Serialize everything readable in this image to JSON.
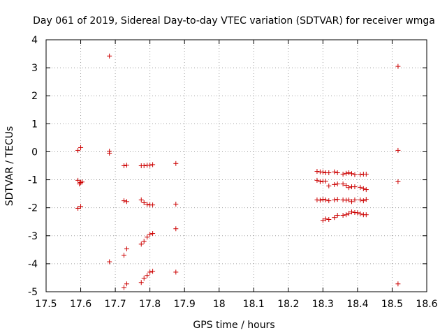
{
  "chart_data": {
    "type": "scatter",
    "title": "Day 061 of 2019, Sidereal Day-to-day VTEC variation (SDTVAR) for receiver wmga",
    "xlabel": "GPS time / hours",
    "ylabel": "SDTVAR / TECUs",
    "xlim": [
      17.5,
      18.6
    ],
    "ylim": [
      -5,
      4
    ],
    "xticks": [
      17.5,
      17.6,
      17.7,
      17.8,
      17.9,
      18.0,
      18.1,
      18.2,
      18.3,
      18.4,
      18.5,
      18.6
    ],
    "xtick_labels": [
      "17.5",
      "17.6",
      "17.7",
      "17.8",
      "17.9",
      "18",
      "18.1",
      "18.2",
      "18.3",
      "18.4",
      "18.5",
      "18.6"
    ],
    "yticks": [
      -5,
      -4,
      -3,
      -2,
      -1,
      0,
      1,
      2,
      3,
      4
    ],
    "ytick_labels": [
      "-5",
      "-4",
      "-3",
      "-2",
      "-1",
      "0",
      "1",
      "2",
      "3",
      "4"
    ],
    "grid": true,
    "marker": "+",
    "color": "#cc0000",
    "series": [
      {
        "name": "SDTVAR",
        "points": [
          [
            17.592,
            0.05
          ],
          [
            17.6,
            0.15
          ],
          [
            17.592,
            -1.02
          ],
          [
            17.596,
            -1.15
          ],
          [
            17.6,
            -1.1
          ],
          [
            17.604,
            -1.08
          ],
          [
            17.592,
            -2.02
          ],
          [
            17.6,
            -1.95
          ],
          [
            17.683,
            3.42
          ],
          [
            17.683,
            0.02
          ],
          [
            17.683,
            -0.05
          ],
          [
            17.683,
            -3.93
          ],
          [
            17.725,
            -0.5
          ],
          [
            17.733,
            -0.48
          ],
          [
            17.725,
            -1.75
          ],
          [
            17.733,
            -1.78
          ],
          [
            17.725,
            -3.7
          ],
          [
            17.733,
            -3.47
          ],
          [
            17.725,
            -4.85
          ],
          [
            17.733,
            -4.72
          ],
          [
            17.775,
            -0.5
          ],
          [
            17.783,
            -0.5
          ],
          [
            17.792,
            -0.48
          ],
          [
            17.8,
            -0.48
          ],
          [
            17.808,
            -0.46
          ],
          [
            17.775,
            -1.72
          ],
          [
            17.783,
            -1.82
          ],
          [
            17.792,
            -1.88
          ],
          [
            17.8,
            -1.9
          ],
          [
            17.808,
            -1.9
          ],
          [
            17.775,
            -3.3
          ],
          [
            17.783,
            -3.2
          ],
          [
            17.792,
            -3.05
          ],
          [
            17.8,
            -2.95
          ],
          [
            17.808,
            -2.92
          ],
          [
            17.775,
            -4.67
          ],
          [
            17.783,
            -4.52
          ],
          [
            17.792,
            -4.42
          ],
          [
            17.8,
            -4.3
          ],
          [
            17.808,
            -4.27
          ],
          [
            17.875,
            -0.42
          ],
          [
            17.875,
            -1.87
          ],
          [
            17.875,
            -2.75
          ],
          [
            17.875,
            -4.3
          ],
          [
            18.283,
            -0.7
          ],
          [
            18.292,
            -0.72
          ],
          [
            18.3,
            -0.73
          ],
          [
            18.308,
            -0.75
          ],
          [
            18.317,
            -0.75
          ],
          [
            18.333,
            -0.72
          ],
          [
            18.342,
            -0.75
          ],
          [
            18.358,
            -0.8
          ],
          [
            18.367,
            -0.77
          ],
          [
            18.375,
            -0.75
          ],
          [
            18.383,
            -0.78
          ],
          [
            18.392,
            -0.82
          ],
          [
            18.408,
            -0.82
          ],
          [
            18.417,
            -0.8
          ],
          [
            18.425,
            -0.8
          ],
          [
            18.283,
            -1.02
          ],
          [
            18.292,
            -1.07
          ],
          [
            18.3,
            -1.05
          ],
          [
            18.308,
            -1.05
          ],
          [
            18.317,
            -1.22
          ],
          [
            18.333,
            -1.17
          ],
          [
            18.342,
            -1.15
          ],
          [
            18.358,
            -1.15
          ],
          [
            18.367,
            -1.2
          ],
          [
            18.375,
            -1.28
          ],
          [
            18.383,
            -1.25
          ],
          [
            18.392,
            -1.25
          ],
          [
            18.408,
            -1.27
          ],
          [
            18.417,
            -1.32
          ],
          [
            18.425,
            -1.35
          ],
          [
            18.283,
            -1.72
          ],
          [
            18.292,
            -1.73
          ],
          [
            18.3,
            -1.7
          ],
          [
            18.308,
            -1.72
          ],
          [
            18.317,
            -1.75
          ],
          [
            18.333,
            -1.72
          ],
          [
            18.342,
            -1.7
          ],
          [
            18.358,
            -1.72
          ],
          [
            18.367,
            -1.73
          ],
          [
            18.375,
            -1.72
          ],
          [
            18.383,
            -1.78
          ],
          [
            18.392,
            -1.72
          ],
          [
            18.408,
            -1.72
          ],
          [
            18.417,
            -1.75
          ],
          [
            18.425,
            -1.7
          ],
          [
            18.3,
            -2.45
          ],
          [
            18.308,
            -2.4
          ],
          [
            18.317,
            -2.42
          ],
          [
            18.333,
            -2.35
          ],
          [
            18.342,
            -2.27
          ],
          [
            18.358,
            -2.27
          ],
          [
            18.367,
            -2.25
          ],
          [
            18.375,
            -2.2
          ],
          [
            18.383,
            -2.15
          ],
          [
            18.392,
            -2.17
          ],
          [
            18.4,
            -2.18
          ],
          [
            18.408,
            -2.22
          ],
          [
            18.417,
            -2.25
          ],
          [
            18.425,
            -2.25
          ],
          [
            18.517,
            3.05
          ],
          [
            18.517,
            0.05
          ],
          [
            18.517,
            -1.07
          ],
          [
            18.517,
            -4.72
          ]
        ]
      }
    ]
  }
}
